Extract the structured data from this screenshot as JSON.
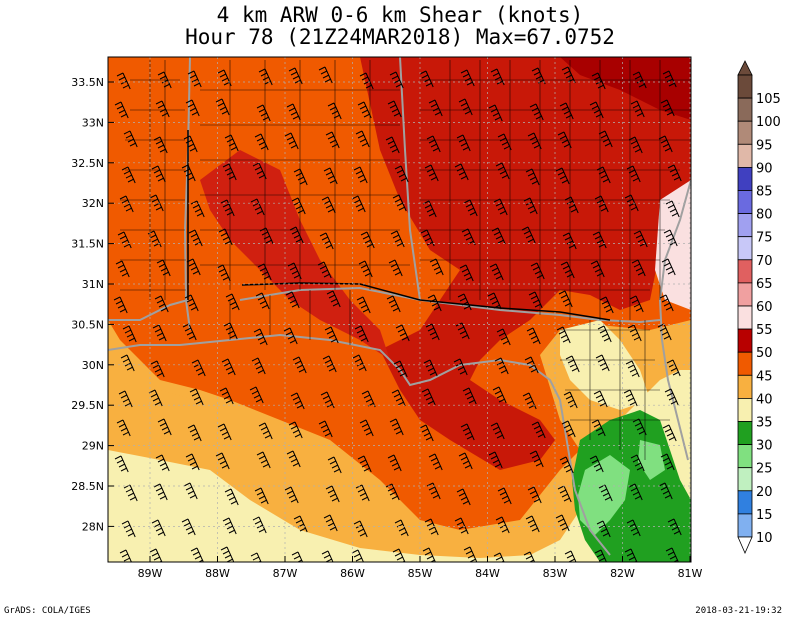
{
  "title": {
    "line1": "4 km ARW 0-6 km Shear (knots)",
    "line2": "Hour 78 (21Z24MAR2018) Max=67.0752"
  },
  "footer": {
    "left": "GrADS: COLA/IGES",
    "right": "2018-03-21-19:32"
  },
  "axes": {
    "lat_labels": [
      "33.5N",
      "33N",
      "32.5N",
      "32N",
      "31.5N",
      "31N",
      "30.5N",
      "30N",
      "29.5N",
      "29N",
      "28.5N",
      "28N"
    ],
    "lon_labels": [
      "89W",
      "88W",
      "87W",
      "86W",
      "85W",
      "84W",
      "83W",
      "82W",
      "81W"
    ]
  },
  "colorbar": {
    "labels": [
      "105",
      "100",
      "95",
      "90",
      "85",
      "80",
      "75",
      "70",
      "65",
      "60",
      "55",
      "50",
      "45",
      "40",
      "35",
      "30",
      "25",
      "20",
      "15",
      "10"
    ],
    "colors": [
      "#6b4a3a",
      "#8a6a5a",
      "#b08a78",
      "#e0b8a8",
      "#4040c0",
      "#6a6ae0",
      "#a0a0f0",
      "#c8c8f8",
      "#e06060",
      "#f0a0a0",
      "#fae0e0",
      "#b80000",
      "#f05a00",
      "#f8b040",
      "#f8f0b0",
      "#20a020",
      "#80e080",
      "#c0f0c0",
      "#3080e0",
      "#80b0f0"
    ]
  },
  "map_colors": {
    "c60": "#fae0e0",
    "c55": "#c80808",
    "c50": "#f05a00",
    "c45": "#f8b040",
    "c40": "#f8f0b0",
    "c35": "#20a020",
    "c30": "#80e080",
    "border": "#a0a0a0"
  }
}
